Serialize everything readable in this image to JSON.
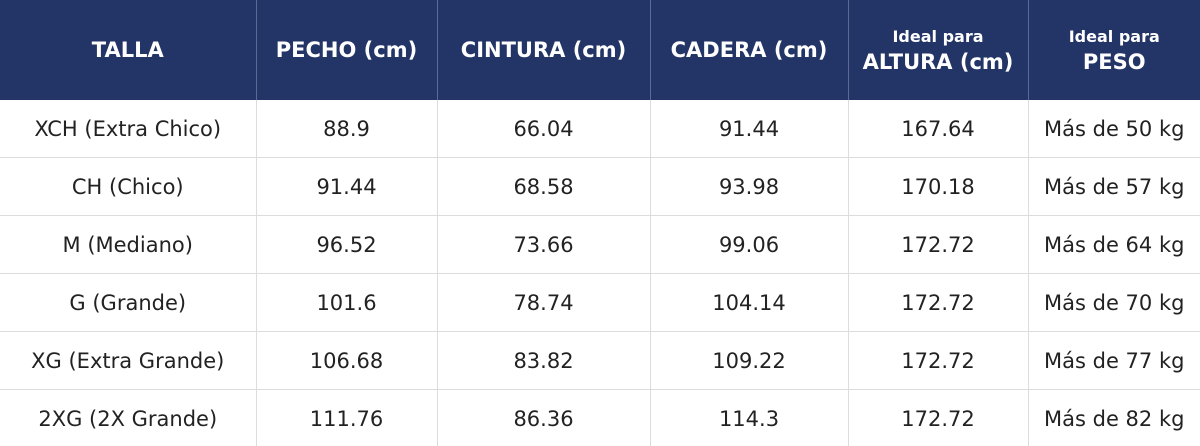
{
  "table": {
    "header": [
      "TALLA",
      "PECHO (cm)",
      "CINTURA (cm)",
      "CADERA (cm)",
      {
        "small": "Ideal para",
        "main": "ALTURA (cm)"
      },
      {
        "small": "Ideal para",
        "main": "PESO"
      }
    ],
    "rows": [
      [
        "XCH (Extra Chico)",
        "88.9",
        "66.04",
        "91.44",
        "167.64",
        "Más de 50 kg"
      ],
      [
        "CH (Chico)",
        "91.44",
        "68.58",
        "93.98",
        "170.18",
        "Más de 57 kg"
      ],
      [
        "M (Mediano)",
        "96.52",
        "73.66",
        "99.06",
        "172.72",
        "Más de 64 kg"
      ],
      [
        "G (Grande)",
        "101.6",
        "78.74",
        "104.14",
        "172.72",
        "Más de 70 kg"
      ],
      [
        "XG (Extra Grande)",
        "106.68",
        "83.82",
        "109.22",
        "172.72",
        "Más de 77 kg"
      ],
      [
        "2XG (2X Grande)",
        "111.76",
        "86.36",
        "114.3",
        "172.72",
        "Más de 82 kg"
      ]
    ]
  }
}
